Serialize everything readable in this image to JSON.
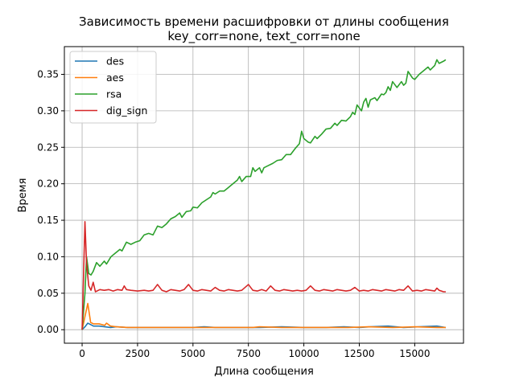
{
  "chart_data": {
    "type": "line",
    "title": "Зависимость времени расшифровки от длины сообщения",
    "subtitle": "key_corr=none, text_corr=none",
    "xlabel": "Длина сообщения",
    "ylabel": "Время",
    "xlim": [
      -800,
      17200
    ],
    "ylim": [
      -0.0185,
      0.388
    ],
    "xticks": [
      0,
      2500,
      5000,
      7500,
      10000,
      12500,
      15000
    ],
    "xtick_labels": [
      "0",
      "2500",
      "5000",
      "7500",
      "10000",
      "12500",
      "15000"
    ],
    "yticks": [
      0.0,
      0.05,
      0.1,
      0.15,
      0.2,
      0.25,
      0.3,
      0.35
    ],
    "ytick_labels": [
      "0.00",
      "0.05",
      "0.10",
      "0.15",
      "0.20",
      "0.25",
      "0.30",
      "0.35"
    ],
    "grid": true,
    "legend_position": "top-left",
    "series": [
      {
        "name": "des",
        "color": "#1f77b4",
        "points": [
          [
            0,
            0.0
          ],
          [
            128,
            0.004
          ],
          [
            256,
            0.009
          ],
          [
            384,
            0.007
          ],
          [
            512,
            0.005
          ],
          [
            768,
            0.005
          ],
          [
            1024,
            0.004
          ],
          [
            1280,
            0.003
          ],
          [
            1536,
            0.004
          ],
          [
            2048,
            0.003
          ],
          [
            3000,
            0.003
          ],
          [
            4000,
            0.003
          ],
          [
            5000,
            0.003
          ],
          [
            5500,
            0.004
          ],
          [
            6000,
            0.003
          ],
          [
            7000,
            0.003
          ],
          [
            8000,
            0.003
          ],
          [
            9000,
            0.004
          ],
          [
            10000,
            0.003
          ],
          [
            11000,
            0.003
          ],
          [
            11800,
            0.004
          ],
          [
            12500,
            0.003
          ],
          [
            13000,
            0.004
          ],
          [
            13800,
            0.005
          ],
          [
            14500,
            0.003
          ],
          [
            15200,
            0.004
          ],
          [
            16000,
            0.005
          ],
          [
            16400,
            0.003
          ]
        ]
      },
      {
        "name": "aes",
        "color": "#ff7f0e",
        "points": [
          [
            0,
            0.0
          ],
          [
            128,
            0.018
          ],
          [
            256,
            0.036
          ],
          [
            384,
            0.01
          ],
          [
            512,
            0.008
          ],
          [
            768,
            0.008
          ],
          [
            1024,
            0.006
          ],
          [
            1100,
            0.009
          ],
          [
            1280,
            0.005
          ],
          [
            1536,
            0.004
          ],
          [
            2048,
            0.003
          ],
          [
            3000,
            0.003
          ],
          [
            4000,
            0.003
          ],
          [
            5000,
            0.003
          ],
          [
            6000,
            0.003
          ],
          [
            7000,
            0.003
          ],
          [
            7700,
            0.003
          ],
          [
            8000,
            0.004
          ],
          [
            9000,
            0.003
          ],
          [
            10000,
            0.003
          ],
          [
            11000,
            0.003
          ],
          [
            12000,
            0.003
          ],
          [
            12900,
            0.004
          ],
          [
            14000,
            0.003
          ],
          [
            15000,
            0.004
          ],
          [
            16000,
            0.003
          ],
          [
            16400,
            0.003
          ]
        ]
      },
      {
        "name": "rsa",
        "color": "#2ca02c",
        "points": [
          [
            0,
            0.0
          ],
          [
            128,
            0.05
          ],
          [
            200,
            0.1
          ],
          [
            300,
            0.077
          ],
          [
            400,
            0.075
          ],
          [
            500,
            0.08
          ],
          [
            650,
            0.092
          ],
          [
            800,
            0.087
          ],
          [
            1000,
            0.094
          ],
          [
            1100,
            0.09
          ],
          [
            1300,
            0.1
          ],
          [
            1500,
            0.105
          ],
          [
            1700,
            0.11
          ],
          [
            1800,
            0.108
          ],
          [
            2000,
            0.12
          ],
          [
            2200,
            0.117
          ],
          [
            2400,
            0.12
          ],
          [
            2600,
            0.122
          ],
          [
            2800,
            0.13
          ],
          [
            3000,
            0.132
          ],
          [
            3200,
            0.13
          ],
          [
            3400,
            0.142
          ],
          [
            3600,
            0.14
          ],
          [
            3800,
            0.145
          ],
          [
            4000,
            0.152
          ],
          [
            4200,
            0.155
          ],
          [
            4400,
            0.16
          ],
          [
            4500,
            0.154
          ],
          [
            4700,
            0.162
          ],
          [
            4900,
            0.163
          ],
          [
            5000,
            0.168
          ],
          [
            5200,
            0.167
          ],
          [
            5400,
            0.174
          ],
          [
            5600,
            0.178
          ],
          [
            5800,
            0.182
          ],
          [
            5900,
            0.188
          ],
          [
            6000,
            0.186
          ],
          [
            6200,
            0.19
          ],
          [
            6400,
            0.19
          ],
          [
            6600,
            0.195
          ],
          [
            6800,
            0.2
          ],
          [
            7000,
            0.205
          ],
          [
            7100,
            0.21
          ],
          [
            7200,
            0.203
          ],
          [
            7400,
            0.21
          ],
          [
            7600,
            0.21
          ],
          [
            7700,
            0.222
          ],
          [
            7800,
            0.217
          ],
          [
            8000,
            0.222
          ],
          [
            8100,
            0.215
          ],
          [
            8200,
            0.222
          ],
          [
            8400,
            0.225
          ],
          [
            8600,
            0.228
          ],
          [
            8800,
            0.232
          ],
          [
            9000,
            0.233
          ],
          [
            9200,
            0.24
          ],
          [
            9400,
            0.24
          ],
          [
            9600,
            0.248
          ],
          [
            9800,
            0.255
          ],
          [
            9900,
            0.272
          ],
          [
            10000,
            0.262
          ],
          [
            10200,
            0.257
          ],
          [
            10300,
            0.256
          ],
          [
            10500,
            0.265
          ],
          [
            10600,
            0.262
          ],
          [
            10800,
            0.268
          ],
          [
            11000,
            0.275
          ],
          [
            11200,
            0.276
          ],
          [
            11400,
            0.283
          ],
          [
            11500,
            0.28
          ],
          [
            11700,
            0.287
          ],
          [
            11900,
            0.286
          ],
          [
            12100,
            0.292
          ],
          [
            12200,
            0.298
          ],
          [
            12300,
            0.295
          ],
          [
            12400,
            0.308
          ],
          [
            12600,
            0.3
          ],
          [
            12700,
            0.312
          ],
          [
            12800,
            0.317
          ],
          [
            12900,
            0.305
          ],
          [
            13000,
            0.315
          ],
          [
            13200,
            0.318
          ],
          [
            13300,
            0.314
          ],
          [
            13500,
            0.323
          ],
          [
            13600,
            0.322
          ],
          [
            13700,
            0.325
          ],
          [
            13800,
            0.333
          ],
          [
            13900,
            0.328
          ],
          [
            14000,
            0.34
          ],
          [
            14100,
            0.336
          ],
          [
            14200,
            0.332
          ],
          [
            14400,
            0.34
          ],
          [
            14500,
            0.335
          ],
          [
            14600,
            0.338
          ],
          [
            14700,
            0.354
          ],
          [
            14900,
            0.345
          ],
          [
            15000,
            0.343
          ],
          [
            15200,
            0.35
          ],
          [
            15400,
            0.355
          ],
          [
            15600,
            0.36
          ],
          [
            15700,
            0.356
          ],
          [
            15900,
            0.362
          ],
          [
            16000,
            0.37
          ],
          [
            16100,
            0.365
          ],
          [
            16300,
            0.368
          ],
          [
            16400,
            0.37
          ]
        ]
      },
      {
        "name": "dig_sign",
        "color": "#d62728",
        "points": [
          [
            0,
            0.0
          ],
          [
            128,
            0.148
          ],
          [
            200,
            0.09
          ],
          [
            300,
            0.06
          ],
          [
            400,
            0.054
          ],
          [
            500,
            0.065
          ],
          [
            600,
            0.052
          ],
          [
            800,
            0.055
          ],
          [
            1000,
            0.054
          ],
          [
            1200,
            0.055
          ],
          [
            1400,
            0.053
          ],
          [
            1600,
            0.055
          ],
          [
            1800,
            0.054
          ],
          [
            1900,
            0.06
          ],
          [
            2000,
            0.055
          ],
          [
            2200,
            0.054
          ],
          [
            2500,
            0.053
          ],
          [
            2800,
            0.054
          ],
          [
            3000,
            0.053
          ],
          [
            3200,
            0.054
          ],
          [
            3400,
            0.062
          ],
          [
            3600,
            0.054
          ],
          [
            3800,
            0.052
          ],
          [
            4000,
            0.055
          ],
          [
            4200,
            0.054
          ],
          [
            4400,
            0.053
          ],
          [
            4600,
            0.055
          ],
          [
            4800,
            0.062
          ],
          [
            5000,
            0.054
          ],
          [
            5200,
            0.053
          ],
          [
            5400,
            0.055
          ],
          [
            5600,
            0.054
          ],
          [
            5800,
            0.053
          ],
          [
            6000,
            0.058
          ],
          [
            6200,
            0.054
          ],
          [
            6400,
            0.053
          ],
          [
            6600,
            0.055
          ],
          [
            6800,
            0.054
          ],
          [
            7000,
            0.053
          ],
          [
            7200,
            0.054
          ],
          [
            7500,
            0.062
          ],
          [
            7700,
            0.054
          ],
          [
            7900,
            0.053
          ],
          [
            8100,
            0.055
          ],
          [
            8300,
            0.053
          ],
          [
            8500,
            0.06
          ],
          [
            8700,
            0.054
          ],
          [
            8900,
            0.053
          ],
          [
            9100,
            0.055
          ],
          [
            9300,
            0.054
          ],
          [
            9500,
            0.053
          ],
          [
            9700,
            0.054
          ],
          [
            9900,
            0.053
          ],
          [
            10100,
            0.054
          ],
          [
            10300,
            0.06
          ],
          [
            10500,
            0.054
          ],
          [
            10700,
            0.053
          ],
          [
            10900,
            0.055
          ],
          [
            11100,
            0.054
          ],
          [
            11300,
            0.053
          ],
          [
            11500,
            0.055
          ],
          [
            11700,
            0.054
          ],
          [
            11900,
            0.053
          ],
          [
            12100,
            0.054
          ],
          [
            12300,
            0.058
          ],
          [
            12500,
            0.053
          ],
          [
            12700,
            0.054
          ],
          [
            12900,
            0.053
          ],
          [
            13100,
            0.055
          ],
          [
            13300,
            0.054
          ],
          [
            13500,
            0.053
          ],
          [
            13700,
            0.055
          ],
          [
            13900,
            0.054
          ],
          [
            14100,
            0.053
          ],
          [
            14300,
            0.055
          ],
          [
            14500,
            0.054
          ],
          [
            14700,
            0.06
          ],
          [
            14900,
            0.053
          ],
          [
            15100,
            0.054
          ],
          [
            15300,
            0.053
          ],
          [
            15500,
            0.055
          ],
          [
            15700,
            0.054
          ],
          [
            15900,
            0.053
          ],
          [
            16000,
            0.057
          ],
          [
            16100,
            0.054
          ],
          [
            16300,
            0.052
          ],
          [
            16400,
            0.052
          ]
        ]
      }
    ]
  }
}
